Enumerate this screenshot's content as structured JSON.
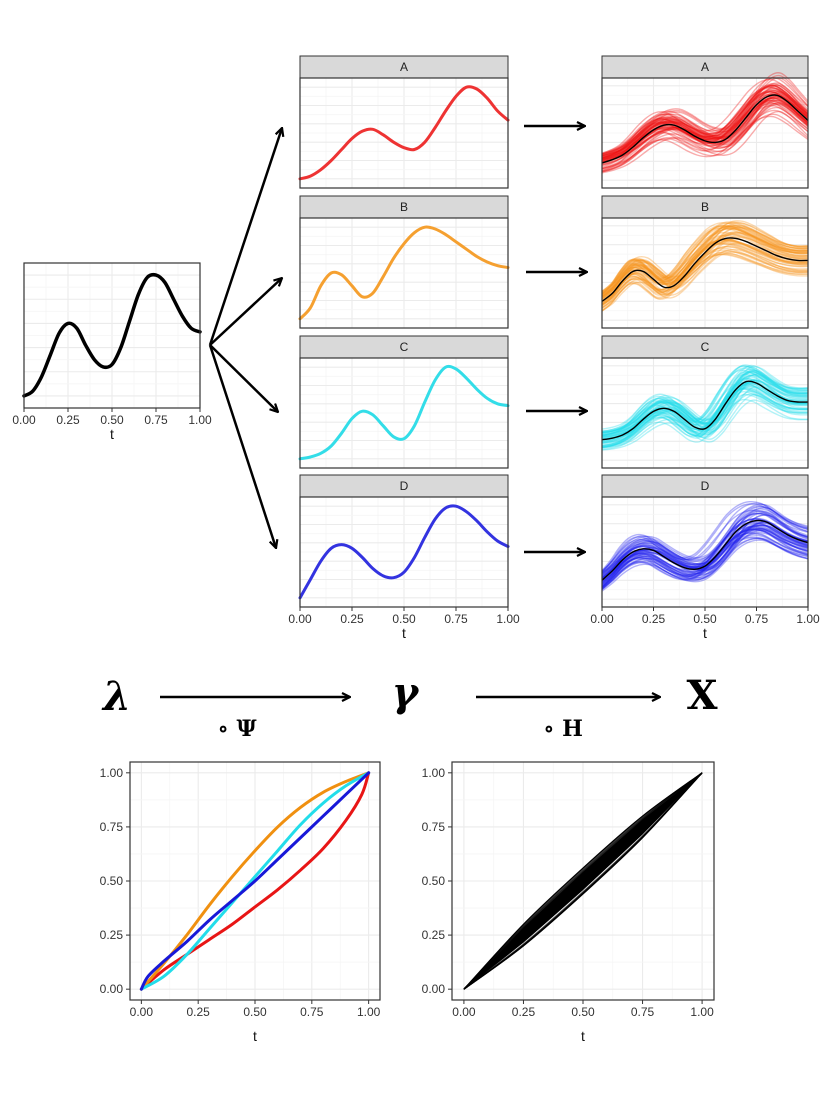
{
  "chart_data": [
    {
      "id": "base",
      "type": "line",
      "title": "",
      "xlabel": "t",
      "xticks": [
        "0.00",
        "0.25",
        "0.50",
        "0.75",
        "1.00"
      ],
      "xlim": [
        0,
        1
      ],
      "ylim": [
        -0.1,
        1.1
      ],
      "series": [
        {
          "name": "base",
          "color": "#000000",
          "x": [
            0.0,
            0.05,
            0.1,
            0.15,
            0.2,
            0.25,
            0.3,
            0.35,
            0.4,
            0.45,
            0.5,
            0.55,
            0.6,
            0.65,
            0.7,
            0.75,
            0.8,
            0.85,
            0.9,
            0.95,
            1.0
          ],
          "y": [
            0.0,
            0.04,
            0.16,
            0.34,
            0.52,
            0.6,
            0.56,
            0.42,
            0.3,
            0.24,
            0.26,
            0.4,
            0.62,
            0.84,
            0.98,
            1.0,
            0.94,
            0.8,
            0.66,
            0.56,
            0.53
          ]
        }
      ]
    },
    {
      "id": "panel-A",
      "type": "line",
      "strip": "A",
      "xlabel": "",
      "xticks": [],
      "xlim": [
        0,
        1
      ],
      "ylim": [
        -0.1,
        1.1
      ],
      "series": [
        {
          "name": "A",
          "color": "#ee3333",
          "x": [
            0.0,
            0.05,
            0.1,
            0.15,
            0.2,
            0.25,
            0.3,
            0.35,
            0.4,
            0.45,
            0.5,
            0.55,
            0.6,
            0.65,
            0.7,
            0.75,
            0.8,
            0.85,
            0.9,
            0.95,
            1.0
          ],
          "y": [
            0.0,
            0.03,
            0.1,
            0.2,
            0.32,
            0.44,
            0.52,
            0.54,
            0.48,
            0.4,
            0.34,
            0.32,
            0.4,
            0.56,
            0.74,
            0.9,
            1.0,
            0.98,
            0.88,
            0.74,
            0.64
          ]
        }
      ]
    },
    {
      "id": "panel-B",
      "type": "line",
      "strip": "B",
      "xlabel": "",
      "xticks": [],
      "xlim": [
        0,
        1
      ],
      "ylim": [
        -0.1,
        1.1
      ],
      "series": [
        {
          "name": "B",
          "color": "#f5a030",
          "x": [
            0.0,
            0.05,
            0.1,
            0.15,
            0.2,
            0.25,
            0.3,
            0.35,
            0.4,
            0.45,
            0.5,
            0.55,
            0.6,
            0.65,
            0.7,
            0.75,
            0.8,
            0.85,
            0.9,
            0.95,
            1.0
          ],
          "y": [
            0.0,
            0.12,
            0.36,
            0.5,
            0.48,
            0.36,
            0.24,
            0.28,
            0.46,
            0.66,
            0.82,
            0.94,
            1.0,
            0.98,
            0.92,
            0.84,
            0.76,
            0.68,
            0.62,
            0.58,
            0.56
          ]
        }
      ]
    },
    {
      "id": "panel-C",
      "type": "line",
      "strip": "C",
      "xlabel": "",
      "xticks": [],
      "xlim": [
        0,
        1
      ],
      "ylim": [
        -0.1,
        1.1
      ],
      "series": [
        {
          "name": "C",
          "color": "#33dde8",
          "x": [
            0.0,
            0.05,
            0.1,
            0.15,
            0.2,
            0.25,
            0.3,
            0.35,
            0.4,
            0.45,
            0.5,
            0.55,
            0.6,
            0.65,
            0.7,
            0.75,
            0.8,
            0.85,
            0.9,
            0.95,
            1.0
          ],
          "y": [
            0.0,
            0.02,
            0.06,
            0.14,
            0.28,
            0.44,
            0.52,
            0.48,
            0.36,
            0.24,
            0.22,
            0.36,
            0.62,
            0.86,
            1.0,
            0.98,
            0.88,
            0.76,
            0.66,
            0.6,
            0.58
          ]
        }
      ]
    },
    {
      "id": "panel-D",
      "type": "line",
      "strip": "D",
      "xlabel": "t",
      "xticks": [
        "0.00",
        "0.25",
        "0.50",
        "0.75",
        "1.00"
      ],
      "xlim": [
        0,
        1
      ],
      "ylim": [
        -0.1,
        1.1
      ],
      "series": [
        {
          "name": "D",
          "color": "#3333e0",
          "x": [
            0.0,
            0.05,
            0.1,
            0.15,
            0.2,
            0.25,
            0.3,
            0.35,
            0.4,
            0.45,
            0.5,
            0.55,
            0.6,
            0.65,
            0.7,
            0.75,
            0.8,
            0.85,
            0.9,
            0.95,
            1.0
          ],
          "y": [
            0.0,
            0.2,
            0.4,
            0.54,
            0.58,
            0.54,
            0.44,
            0.32,
            0.24,
            0.22,
            0.28,
            0.44,
            0.66,
            0.86,
            0.98,
            1.0,
            0.94,
            0.84,
            0.72,
            0.62,
            0.56
          ]
        }
      ]
    },
    {
      "id": "samples-A",
      "type": "line",
      "strip": "A",
      "xlabel": "",
      "xticks": [],
      "xlim": [
        0,
        1
      ],
      "ylim": [
        -0.2,
        1.2
      ],
      "mean_color": "#000000",
      "series": [
        {
          "name": "A",
          "color": "#ee1111",
          "x": [
            0.0,
            0.05,
            0.1,
            0.15,
            0.2,
            0.25,
            0.3,
            0.35,
            0.4,
            0.45,
            0.5,
            0.55,
            0.6,
            0.65,
            0.7,
            0.75,
            0.8,
            0.85,
            0.9,
            0.95,
            1.0
          ],
          "y": [
            0.12,
            0.16,
            0.22,
            0.32,
            0.44,
            0.54,
            0.6,
            0.6,
            0.54,
            0.46,
            0.4,
            0.38,
            0.42,
            0.54,
            0.7,
            0.86,
            0.96,
            0.98,
            0.9,
            0.78,
            0.66
          ]
        }
      ]
    },
    {
      "id": "samples-B",
      "type": "line",
      "strip": "B",
      "xlabel": "",
      "xticks": [],
      "xlim": [
        0,
        1
      ],
      "ylim": [
        -0.2,
        1.2
      ],
      "mean_color": "#000000",
      "series": [
        {
          "name": "B",
          "color": "#f59420",
          "x": [
            0.0,
            0.05,
            0.1,
            0.15,
            0.2,
            0.25,
            0.3,
            0.35,
            0.4,
            0.45,
            0.5,
            0.55,
            0.6,
            0.65,
            0.7,
            0.75,
            0.8,
            0.85,
            0.9,
            0.95,
            1.0
          ],
          "y": [
            0.14,
            0.24,
            0.4,
            0.52,
            0.52,
            0.42,
            0.32,
            0.34,
            0.46,
            0.62,
            0.76,
            0.88,
            0.94,
            0.94,
            0.9,
            0.84,
            0.78,
            0.72,
            0.68,
            0.66,
            0.66
          ]
        }
      ]
    },
    {
      "id": "samples-C",
      "type": "line",
      "strip": "C",
      "xlabel": "",
      "xticks": [],
      "xlim": [
        0,
        1
      ],
      "ylim": [
        -0.2,
        1.2
      ],
      "mean_color": "#000000",
      "series": [
        {
          "name": "C",
          "color": "#22ddea",
          "x": [
            0.0,
            0.05,
            0.1,
            0.15,
            0.2,
            0.25,
            0.3,
            0.35,
            0.4,
            0.45,
            0.5,
            0.55,
            0.6,
            0.65,
            0.7,
            0.75,
            0.8,
            0.85,
            0.9,
            0.95,
            1.0
          ],
          "y": [
            0.16,
            0.18,
            0.22,
            0.3,
            0.42,
            0.52,
            0.56,
            0.52,
            0.42,
            0.32,
            0.3,
            0.42,
            0.62,
            0.8,
            0.9,
            0.88,
            0.8,
            0.72,
            0.66,
            0.64,
            0.64
          ]
        }
      ]
    },
    {
      "id": "samples-D",
      "type": "line",
      "strip": "D",
      "xlabel": "t",
      "xticks": [
        "0.00",
        "0.25",
        "0.50",
        "0.75",
        "1.00"
      ],
      "xlim": [
        0,
        1
      ],
      "ylim": [
        -0.2,
        1.2
      ],
      "mean_color": "#000000",
      "series": [
        {
          "name": "D",
          "color": "#2222ee",
          "x": [
            0.0,
            0.05,
            0.1,
            0.15,
            0.2,
            0.25,
            0.3,
            0.35,
            0.4,
            0.45,
            0.5,
            0.55,
            0.6,
            0.65,
            0.7,
            0.75,
            0.8,
            0.85,
            0.9,
            0.95,
            1.0
          ],
          "y": [
            0.14,
            0.26,
            0.4,
            0.5,
            0.54,
            0.52,
            0.44,
            0.36,
            0.3,
            0.28,
            0.32,
            0.44,
            0.6,
            0.76,
            0.86,
            0.9,
            0.88,
            0.8,
            0.72,
            0.66,
            0.62
          ]
        }
      ]
    },
    {
      "id": "warping",
      "type": "line",
      "xlabel": "t",
      "xticks": [
        "0.00",
        "0.25",
        "0.50",
        "0.75",
        "1.00"
      ],
      "yticks": [
        "0.00",
        "0.25",
        "0.50",
        "0.75",
        "1.00"
      ],
      "xlim": [
        -0.05,
        1.05
      ],
      "ylim": [
        -0.05,
        1.05
      ],
      "series": [
        {
          "name": "A",
          "color": "#e81515",
          "x": [
            0.0,
            0.1,
            0.2,
            0.3,
            0.4,
            0.5,
            0.6,
            0.7,
            0.8,
            0.9,
            0.97,
            1.0
          ],
          "y": [
            0.0,
            0.09,
            0.16,
            0.23,
            0.3,
            0.38,
            0.46,
            0.55,
            0.65,
            0.78,
            0.9,
            1.0
          ]
        },
        {
          "name": "B",
          "color": "#f09010",
          "x": [
            0.0,
            0.1,
            0.2,
            0.3,
            0.4,
            0.5,
            0.6,
            0.7,
            0.8,
            0.9,
            1.0
          ],
          "y": [
            0.0,
            0.12,
            0.25,
            0.39,
            0.52,
            0.64,
            0.75,
            0.84,
            0.91,
            0.96,
            1.0
          ]
        },
        {
          "name": "C",
          "color": "#22ddea",
          "x": [
            0.0,
            0.1,
            0.2,
            0.3,
            0.4,
            0.5,
            0.6,
            0.7,
            0.8,
            0.9,
            1.0
          ],
          "y": [
            0.0,
            0.06,
            0.16,
            0.28,
            0.4,
            0.52,
            0.64,
            0.76,
            0.86,
            0.94,
            1.0
          ]
        },
        {
          "name": "D",
          "color": "#1818d8",
          "x": [
            0.0,
            0.03,
            0.1,
            0.2,
            0.3,
            0.4,
            0.5,
            0.6,
            0.7,
            0.8,
            0.9,
            1.0
          ],
          "y": [
            0.0,
            0.06,
            0.13,
            0.22,
            0.32,
            0.41,
            0.5,
            0.6,
            0.7,
            0.8,
            0.9,
            1.0
          ]
        }
      ]
    },
    {
      "id": "warping-samples",
      "type": "line",
      "xlabel": "t",
      "xticks": [
        "0.00",
        "0.25",
        "0.50",
        "0.75",
        "1.00"
      ],
      "yticks": [
        "0.00",
        "0.25",
        "0.50",
        "0.75",
        "1.00"
      ],
      "xlim": [
        -0.05,
        1.05
      ],
      "ylim": [
        -0.05,
        1.05
      ],
      "series": [
        {
          "name": "upper envelope",
          "color": "#000000",
          "x": [
            0.0,
            0.25,
            0.5,
            0.75,
            1.0
          ],
          "y": [
            0.0,
            0.3,
            0.56,
            0.8,
            1.0
          ]
        },
        {
          "name": "lower envelope",
          "color": "#000000",
          "x": [
            0.0,
            0.25,
            0.5,
            0.75,
            1.0
          ],
          "y": [
            0.0,
            0.2,
            0.44,
            0.7,
            1.0
          ]
        }
      ]
    }
  ],
  "annotations": {
    "lambda": "λ",
    "gamma": "γ",
    "x_symbol": "X",
    "compose_psi": "∘  Ψ",
    "compose_h": "∘  H"
  }
}
